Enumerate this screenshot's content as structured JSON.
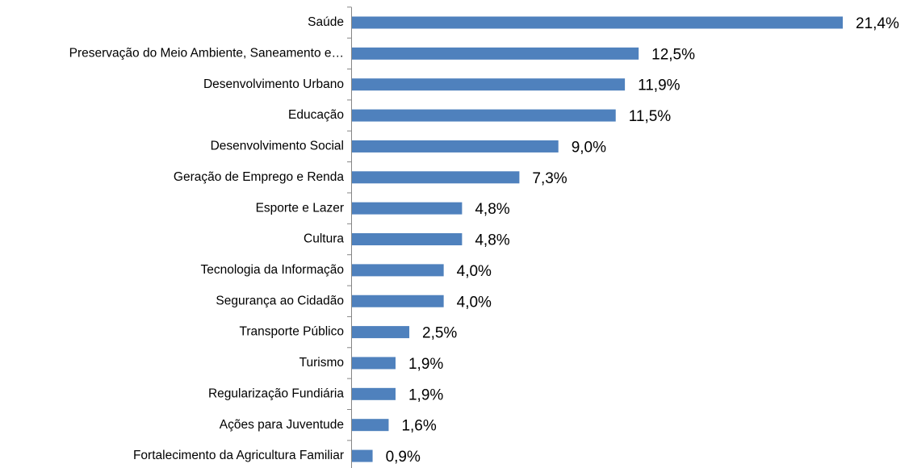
{
  "chart_data": {
    "type": "bar",
    "orientation": "horizontal",
    "categories": [
      "Saúde",
      "Preservação do Meio Ambiente, Saneamento e…",
      "Desenvolvimento Urbano",
      "Educação",
      "Desenvolvimento Social",
      "Geração de Emprego e Renda",
      "Esporte e Lazer",
      "Cultura",
      "Tecnologia da Informação",
      "Segurança ao Cidadão",
      "Transporte Público",
      "Turismo",
      "Regularização Fundiária",
      "Ações para Juventude",
      "Fortalecimento da Agricultura Familiar"
    ],
    "values": [
      21.4,
      12.5,
      11.9,
      11.5,
      9.0,
      7.3,
      4.8,
      4.8,
      4.0,
      4.0,
      2.5,
      1.9,
      1.9,
      1.6,
      0.9
    ],
    "value_labels": [
      "21,4%",
      "12,5%",
      "11,9%",
      "11,5%",
      "9,0%",
      "7,3%",
      "4,8%",
      "4,8%",
      "4,0%",
      "4,0%",
      "2,5%",
      "1,9%",
      "1,9%",
      "1,6%",
      "0,9%"
    ],
    "color": "#4f81bd"
  }
}
